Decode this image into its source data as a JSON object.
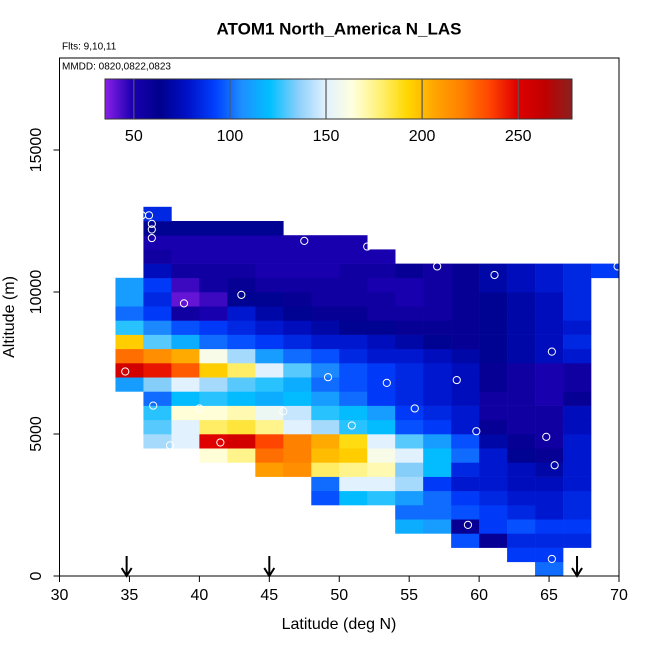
{
  "chart_data": {
    "type": "heatmap",
    "title": "ATOM1 North_America N_LAS",
    "flights": "Flts: 9,10,11",
    "dates": "MMDD: 0820,0822,0823",
    "xlabel": "Latitude (deg N)",
    "ylabel": "Altitude (m)",
    "xlim": [
      30,
      70
    ],
    "xticks": [
      30,
      35,
      40,
      45,
      50,
      55,
      60,
      65,
      70
    ],
    "ylim": [
      0,
      18240
    ],
    "yticks": [
      0,
      5000,
      10000,
      15000
    ],
    "clim": [
      35,
      278
    ],
    "cticks": [
      50,
      100,
      150,
      200,
      250
    ],
    "colorscale": [
      "#8b1fe8",
      "#1a00b0",
      "#00008c",
      "#0010c8",
      "#0040ff",
      "#1e90ff",
      "#00bfff",
      "#87cefa",
      "#e0f0ff",
      "#ffffe0",
      "#fff176",
      "#ffd700",
      "#ffa500",
      "#ff7f00",
      "#ff4500",
      "#e00000",
      "#c00000",
      "#8b2020"
    ],
    "xbins": [
      34,
      36,
      38,
      40,
      42,
      44,
      46,
      48,
      50,
      52,
      54,
      56,
      58,
      60,
      62,
      64,
      66,
      68,
      70
    ],
    "ybins": [
      0,
      500,
      1000,
      1500,
      2000,
      2500,
      3000,
      3500,
      4000,
      4500,
      5000,
      5500,
      6000,
      6500,
      7000,
      7500,
      8000,
      8500,
      9000,
      9500,
      10000,
      10500,
      11000,
      11500,
      12000,
      12500,
      13000
    ],
    "values": [
      [
        null,
        null,
        null,
        null,
        null,
        null,
        null,
        null,
        null,
        null,
        null,
        null,
        null,
        null,
        null,
        100,
        null,
        null
      ],
      [
        null,
        null,
        null,
        null,
        null,
        null,
        null,
        null,
        null,
        null,
        null,
        null,
        null,
        null,
        90,
        90,
        null,
        null
      ],
      [
        null,
        null,
        null,
        null,
        null,
        null,
        null,
        null,
        null,
        null,
        null,
        null,
        95,
        60,
        85,
        85,
        85,
        null
      ],
      [
        null,
        null,
        null,
        null,
        null,
        null,
        null,
        null,
        null,
        null,
        115,
        110,
        60,
        90,
        95,
        90,
        90,
        null
      ],
      [
        null,
        null,
        null,
        null,
        null,
        null,
        null,
        null,
        null,
        null,
        100,
        100,
        95,
        90,
        85,
        80,
        85,
        null
      ],
      [
        null,
        null,
        null,
        null,
        null,
        null,
        null,
        95,
        120,
        125,
        110,
        100,
        90,
        85,
        80,
        80,
        85,
        null
      ],
      [
        null,
        null,
        null,
        null,
        null,
        null,
        null,
        100,
        150,
        150,
        140,
        90,
        80,
        80,
        75,
        75,
        80,
        null
      ],
      [
        null,
        null,
        null,
        null,
        null,
        210,
        215,
        180,
        175,
        170,
        135,
        120,
        85,
        80,
        75,
        70,
        80,
        null
      ],
      [
        null,
        null,
        null,
        165,
        175,
        225,
        220,
        200,
        195,
        160,
        150,
        120,
        100,
        80,
        65,
        60,
        80,
        null
      ],
      [
        null,
        140,
        150,
        250,
        255,
        235,
        220,
        205,
        190,
        150,
        130,
        110,
        95,
        70,
        60,
        55,
        80,
        null
      ],
      [
        null,
        130,
        150,
        180,
        185,
        175,
        150,
        140,
        125,
        120,
        95,
        90,
        80,
        60,
        55,
        55,
        75,
        null
      ],
      [
        null,
        125,
        165,
        165,
        170,
        155,
        145,
        125,
        120,
        110,
        90,
        85,
        80,
        55,
        55,
        55,
        75,
        null
      ],
      [
        null,
        100,
        120,
        125,
        120,
        115,
        120,
        110,
        100,
        90,
        85,
        80,
        75,
        55,
        55,
        50,
        60,
        null
      ],
      [
        110,
        135,
        150,
        140,
        130,
        125,
        115,
        100,
        95,
        90,
        85,
        80,
        75,
        60,
        55,
        50,
        55,
        null
      ],
      [
        255,
        245,
        230,
        195,
        180,
        150,
        130,
        105,
        95,
        90,
        85,
        80,
        75,
        60,
        55,
        50,
        55,
        null
      ],
      [
        225,
        215,
        205,
        160,
        140,
        110,
        100,
        95,
        85,
        80,
        80,
        75,
        70,
        65,
        70,
        75,
        80,
        null
      ],
      [
        195,
        130,
        115,
        100,
        95,
        90,
        85,
        80,
        80,
        75,
        70,
        65,
        60,
        65,
        70,
        75,
        85,
        null
      ],
      [
        125,
        105,
        95,
        90,
        85,
        80,
        75,
        70,
        65,
        65,
        60,
        60,
        60,
        65,
        70,
        75,
        80,
        null
      ],
      [
        100,
        90,
        55,
        50,
        80,
        70,
        65,
        60,
        60,
        55,
        55,
        55,
        60,
        65,
        70,
        75,
        85,
        null
      ],
      [
        110,
        85,
        40,
        45,
        65,
        65,
        60,
        55,
        55,
        55,
        50,
        55,
        60,
        65,
        70,
        75,
        85,
        null
      ],
      [
        110,
        90,
        45,
        55,
        60,
        55,
        55,
        55,
        55,
        50,
        50,
        55,
        60,
        70,
        75,
        80,
        85,
        null
      ],
      [
        null,
        75,
        55,
        55,
        55,
        50,
        50,
        50,
        55,
        55,
        60,
        55,
        60,
        70,
        75,
        80,
        85,
        90
      ],
      [
        null,
        55,
        50,
        50,
        50,
        50,
        50,
        50,
        50,
        50,
        null,
        null,
        null,
        null,
        null,
        null,
        null,
        null
      ],
      [
        null,
        50,
        50,
        50,
        50,
        50,
        50,
        50,
        50,
        null,
        null,
        null,
        null,
        null,
        null,
        null,
        null,
        null
      ],
      [
        null,
        65,
        65,
        65,
        65,
        65,
        null,
        null,
        null,
        null,
        null,
        null,
        null,
        null,
        null,
        null,
        null,
        null
      ],
      [
        null,
        85,
        null,
        null,
        null,
        null,
        null,
        null,
        null,
        null,
        null,
        null,
        null,
        null,
        null,
        null,
        null,
        null
      ]
    ],
    "points": {
      "x": [
        34.7,
        36.7,
        35.2,
        36.6,
        36.6,
        36.6,
        35.9,
        36.4,
        38.9,
        43,
        47.5,
        52,
        57,
        61.1,
        69.9,
        65.2,
        58.4,
        53.4,
        49.2,
        46,
        50.9,
        55.4,
        59.8,
        64.8,
        65.4,
        41.5,
        37.9,
        40,
        59.2,
        65.2
      ],
      "y": [
        7200,
        6000,
        11500,
        11900,
        12200,
        12400,
        12700,
        12700,
        9600,
        9900,
        11800,
        11600,
        10900,
        10600,
        10900,
        7900,
        6900,
        6800,
        7000,
        5800,
        5300,
        5900,
        5100,
        4900,
        3900,
        4700,
        4600,
        5900,
        1800,
        600
      ]
    },
    "arrows": [
      34.8,
      45,
      67
    ]
  }
}
